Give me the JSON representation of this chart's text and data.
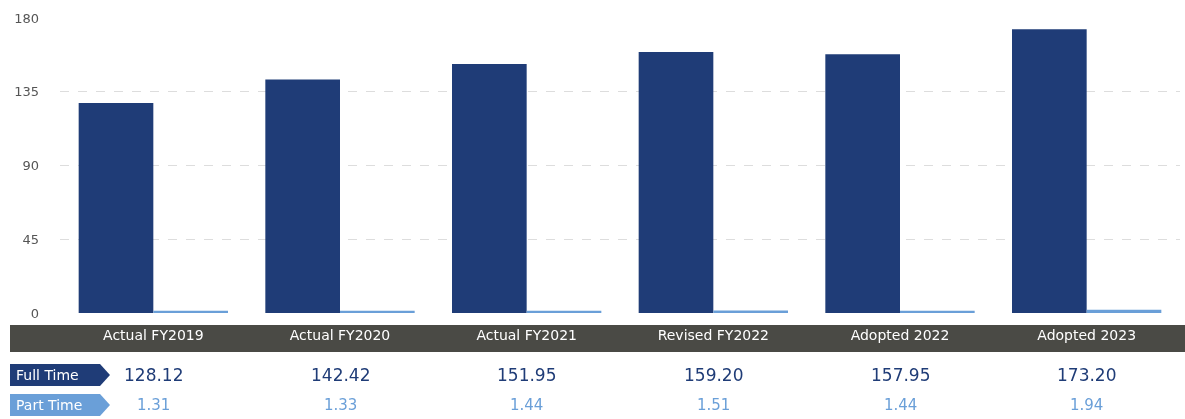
{
  "chart_data": {
    "type": "bar",
    "categories": [
      "Actual FY2019",
      "Actual FY2020",
      "Actual FY2021",
      "Revised FY2022",
      "Adopted 2022",
      "Adopted 2023"
    ],
    "series": [
      {
        "name": "Full Time",
        "color": "#1f3c77",
        "values": [
          128.12,
          142.42,
          151.95,
          159.2,
          157.95,
          173.2
        ],
        "value_labels": [
          "128.12",
          "142.42",
          "151.95",
          "159.20",
          "157.95",
          "173.20"
        ]
      },
      {
        "name": "Part Time",
        "color": "#6a9fd8",
        "values": [
          1.31,
          1.33,
          1.44,
          1.51,
          1.44,
          1.94
        ],
        "value_labels": [
          "1.31",
          "1.33",
          "1.44",
          "1.51",
          "1.44",
          "1.94"
        ]
      }
    ],
    "ylim": [
      0,
      180
    ],
    "yticks": [
      0,
      45,
      90,
      135,
      180
    ],
    "grid": "y",
    "data_labels": true
  }
}
